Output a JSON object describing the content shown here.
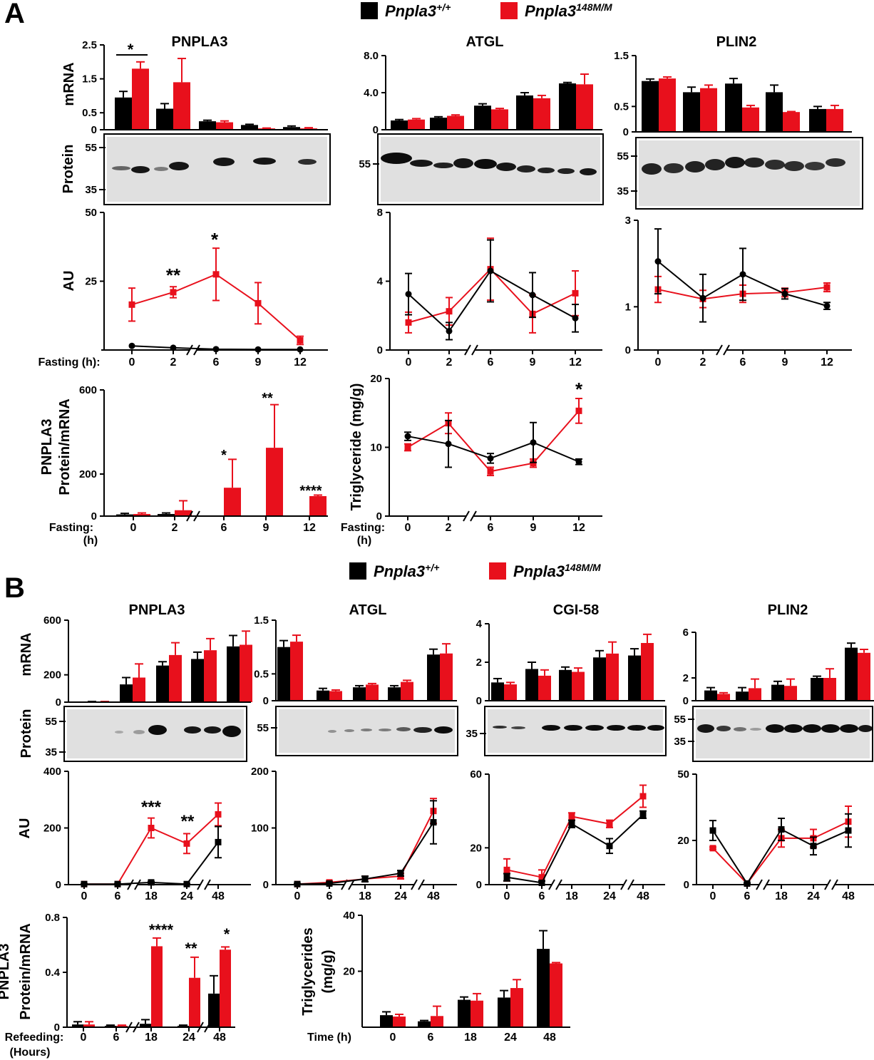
{
  "panel_letters": [
    "A",
    "B"
  ],
  "legends": {
    "A": {
      "wt": "Pnpla3",
      "wt_sup": "+/+",
      "mut": "Pnpla3",
      "mut_sup": "148M/M"
    },
    "B": {
      "wt": "Pnpla3",
      "wt_sup": "+/+",
      "mut": "Pnpla3",
      "mut_sup": "148M/M"
    }
  },
  "colors": {
    "wt": "#000000",
    "mut": "#e8101c"
  },
  "labels": {
    "A": {
      "mrna": "mRNA",
      "protein": "Protein",
      "au": "AU",
      "fasting_axis": "Fasting (h):",
      "ratio_ylabel_1": "PNPLA3",
      "ratio_ylabel_2": "Protein/mRNA",
      "fasting_short": "Fasting:",
      "h": "(h)",
      "tg_ylabel": "Triglyceride (mg/g)"
    },
    "B": {
      "mrna": "mRNA",
      "protein": "Protein",
      "au": "AU",
      "ratio_ylabel_1": "PNPLA3",
      "ratio_ylabel_2": "Protein/mRNA",
      "refeeding": "Refeeding:",
      "hours": "(Hours)",
      "tg_ylabel_1": "Triglycerides",
      "tg_ylabel_2": "(mg/g)",
      "time": "Time (h)"
    }
  },
  "chart_data": [
    {
      "id": "A-mrna-pnpla3",
      "type": "bar",
      "title": "PNPLA3",
      "ylabel": "mRNA",
      "categories": [
        "0",
        "2",
        "6",
        "9",
        "12"
      ],
      "ylim": [
        0,
        2.5
      ],
      "yticks": [
        "0",
        "0.5",
        "1.5",
        "2.5"
      ],
      "series": [
        {
          "values": [
            0.95,
            0.62,
            0.25,
            0.14,
            0.08
          ],
          "errors": [
            0.18,
            0.15,
            0.03,
            0.02,
            0.03
          ]
        },
        {
          "values": [
            1.8,
            1.4,
            0.22,
            0.04,
            0.04
          ],
          "errors": [
            0.2,
            0.7,
            0.04,
            0.01,
            0.02
          ]
        }
      ],
      "annotations": [
        "*"
      ]
    },
    {
      "id": "A-mrna-atgl",
      "type": "bar",
      "title": "ATGL",
      "categories": [
        "0",
        "2",
        "6",
        "9",
        "12"
      ],
      "ylim": [
        0,
        8.0
      ],
      "yticks": [
        "0",
        "4.0",
        "8.0"
      ],
      "series": [
        {
          "values": [
            1.0,
            1.3,
            2.6,
            3.7,
            5.0
          ],
          "errors": [
            0.1,
            0.1,
            0.2,
            0.3,
            0.1
          ]
        },
        {
          "values": [
            1.1,
            1.5,
            2.2,
            3.4,
            4.9
          ],
          "errors": [
            0.1,
            0.1,
            0.1,
            0.3,
            1.1
          ]
        }
      ]
    },
    {
      "id": "A-mrna-plin2",
      "type": "bar",
      "title": "PLIN2",
      "categories": [
        "0",
        "2",
        "6",
        "9",
        "12"
      ],
      "ylim": [
        0,
        1.5
      ],
      "yticks": [
        "0",
        "0.5",
        "1.5"
      ],
      "series": [
        {
          "values": [
            1.0,
            0.78,
            0.95,
            0.78,
            0.45
          ],
          "errors": [
            0.04,
            0.1,
            0.1,
            0.14,
            0.05
          ]
        },
        {
          "values": [
            1.05,
            0.86,
            0.48,
            0.39,
            0.45
          ],
          "errors": [
            0.03,
            0.06,
            0.04,
            0.01,
            0.07
          ]
        }
      ]
    },
    {
      "id": "A-au-pnpla3",
      "type": "line",
      "ylabel": "AU",
      "x": [
        "0",
        "2",
        "6",
        "9",
        "12"
      ],
      "ylim": [
        0,
        50
      ],
      "yticks": [
        "25",
        "50"
      ],
      "series": [
        {
          "values": [
            1.5,
            0.8,
            0.3,
            0.2,
            0.2
          ],
          "errors": [
            0,
            0,
            0,
            0,
            0
          ]
        },
        {
          "values": [
            16.5,
            21,
            27.5,
            17,
            3.5
          ],
          "errors": [
            6,
            2,
            9.5,
            7.5,
            1.5
          ]
        }
      ],
      "annotations": [
        "**",
        "*"
      ]
    },
    {
      "id": "A-au-atgl",
      "type": "line",
      "x": [
        "0",
        "2",
        "6",
        "9",
        "12"
      ],
      "ylim": [
        0,
        8
      ],
      "yticks": [
        "0",
        "4",
        "8"
      ],
      "series": [
        {
          "values": [
            3.25,
            1.1,
            4.6,
            3.2,
            1.85
          ],
          "errors": [
            1.2,
            0.5,
            1.8,
            1.3,
            0.8
          ]
        },
        {
          "values": [
            1.6,
            2.25,
            4.7,
            2.1,
            3.3
          ],
          "errors": [
            0.6,
            0.8,
            1.8,
            1.1,
            1.3
          ]
        }
      ]
    },
    {
      "id": "A-au-plin2",
      "type": "line",
      "x": [
        "0",
        "2",
        "6",
        "9",
        "12"
      ],
      "ylim": [
        0,
        3
      ],
      "yticks": [
        "0",
        "1",
        "3"
      ],
      "series": [
        {
          "values": [
            2.05,
            1.2,
            1.75,
            1.3,
            1.02
          ],
          "errors": [
            0.75,
            0.55,
            0.6,
            0.12,
            0.08
          ]
        },
        {
          "values": [
            1.4,
            1.18,
            1.3,
            1.33,
            1.45
          ],
          "errors": [
            0.3,
            0.2,
            0.2,
            0.1,
            0.1
          ]
        }
      ]
    },
    {
      "id": "A-ratio-pnpla3",
      "type": "bar",
      "x": [
        "0",
        "2",
        "6",
        "9",
        "12"
      ],
      "ylim": [
        0,
        600
      ],
      "yticks": [
        "0",
        "200",
        "600"
      ],
      "series": [
        {
          "values": [
            8,
            10,
            0,
            0,
            0
          ],
          "errors": [
            5,
            5,
            0,
            0,
            0
          ]
        },
        {
          "values": [
            10,
            28,
            135,
            325,
            95
          ],
          "errors": [
            5,
            45,
            135,
            205,
            5
          ]
        }
      ],
      "annotations": [
        "*",
        "**",
        "****"
      ]
    },
    {
      "id": "A-tg",
      "type": "line",
      "x": [
        "0",
        "2",
        "6",
        "9",
        "12"
      ],
      "ylim": [
        0,
        20
      ],
      "yticks": [
        "0",
        "10",
        "20"
      ],
      "series": [
        {
          "values": [
            11.6,
            10.5,
            8.4,
            10.7,
            7.9
          ],
          "errors": [
            0.6,
            3.4,
            0.7,
            2.9,
            0.4
          ]
        },
        {
          "values": [
            10,
            13.5,
            6.5,
            7.7,
            15.3
          ],
          "errors": [
            0.5,
            1.5,
            0.6,
            0.6,
            1.8
          ]
        }
      ],
      "annotations": [
        "*"
      ]
    },
    {
      "id": "B-mrna-pnpla3",
      "type": "bar",
      "title": "PNPLA3",
      "ylabel": "mRNA",
      "categories": [
        "0",
        "6",
        "18",
        "24",
        "48"
      ],
      "ylim": [
        0,
        600
      ],
      "yticks": [
        "0",
        "200",
        "600"
      ],
      "series": [
        {
          "values": [
            3,
            130,
            268,
            316,
            408
          ],
          "errors": [
            2,
            50,
            28,
            50,
            80
          ]
        },
        {
          "values": [
            3,
            180,
            345,
            380,
            420
          ],
          "errors": [
            2,
            100,
            90,
            85,
            100
          ]
        }
      ]
    },
    {
      "id": "B-mrna-atgl",
      "type": "bar",
      "title": "ATGL",
      "categories": [
        "0",
        "6",
        "18",
        "24",
        "48"
      ],
      "ylim": [
        0,
        1.5
      ],
      "yticks": [
        "0",
        "0.5",
        "1.5"
      ],
      "series": [
        {
          "values": [
            1.0,
            0.19,
            0.25,
            0.25,
            0.86
          ],
          "errors": [
            0.12,
            0.04,
            0.03,
            0.03,
            0.1
          ]
        },
        {
          "values": [
            1.1,
            0.18,
            0.3,
            0.35,
            0.88
          ],
          "errors": [
            0.12,
            0.02,
            0.02,
            0.03,
            0.18
          ]
        }
      ]
    },
    {
      "id": "B-mrna-cgi58",
      "type": "bar",
      "title": "CGI-58",
      "categories": [
        "0",
        "6",
        "18",
        "24",
        "48"
      ],
      "ylim": [
        0,
        4
      ],
      "yticks": [
        "0",
        "2",
        "4"
      ],
      "series": [
        {
          "values": [
            0.95,
            1.65,
            1.6,
            2.25,
            2.35
          ],
          "errors": [
            0.2,
            0.35,
            0.15,
            0.35,
            0.35
          ]
        },
        {
          "values": [
            0.85,
            1.3,
            1.5,
            2.45,
            3.0
          ],
          "errors": [
            0.1,
            0.3,
            0.2,
            0.6,
            0.45
          ]
        }
      ]
    },
    {
      "id": "B-mrna-plin2",
      "type": "bar",
      "title": "PLIN2",
      "categories": [
        "0",
        "6",
        "18",
        "24",
        "48"
      ],
      "ylim": [
        0,
        6
      ],
      "yticks": [
        "0",
        "2",
        "6"
      ],
      "series": [
        {
          "values": [
            0.9,
            0.8,
            1.4,
            2.0,
            4.65
          ],
          "errors": [
            0.25,
            0.35,
            0.3,
            0.15,
            0.4
          ]
        },
        {
          "values": [
            0.6,
            1.1,
            1.3,
            2.0,
            4.2
          ],
          "errors": [
            0.1,
            0.8,
            0.6,
            0.8,
            0.3
          ]
        }
      ]
    },
    {
      "id": "B-au-pnpla3",
      "type": "line",
      "ylabel": "AU",
      "x": [
        "0",
        "6",
        "18",
        "24",
        "48"
      ],
      "ylim": [
        0,
        400
      ],
      "yticks": [
        "0",
        "200",
        "400"
      ],
      "series": [
        {
          "values": [
            2,
            2,
            8,
            2,
            150
          ],
          "errors": [
            1,
            1,
            3,
            1,
            55
          ]
        },
        {
          "values": [
            2,
            2,
            200,
            145,
            248
          ],
          "errors": [
            1,
            1,
            35,
            35,
            40
          ]
        }
      ],
      "annotations": [
        "***",
        "**"
      ]
    },
    {
      "id": "B-au-atgl",
      "type": "line",
      "x": [
        "0",
        "6",
        "18",
        "24",
        "48"
      ],
      "ylim": [
        0,
        200
      ],
      "yticks": [
        "0",
        "100",
        "200"
      ],
      "series": [
        {
          "values": [
            1,
            2,
            10,
            20,
            110
          ],
          "errors": [
            1,
            2,
            5,
            5,
            38
          ]
        },
        {
          "values": [
            1,
            4,
            10,
            15,
            130
          ],
          "errors": [
            1,
            2,
            5,
            5,
            22
          ]
        }
      ]
    },
    {
      "id": "B-au-cgi58",
      "type": "line",
      "x": [
        "0",
        "6",
        "18",
        "24",
        "48"
      ],
      "ylim": [
        0,
        60
      ],
      "yticks": [
        "0",
        "20",
        "60"
      ],
      "series": [
        {
          "values": [
            4,
            1,
            33,
            21,
            38
          ],
          "errors": [
            2,
            1,
            2,
            4,
            2
          ]
        },
        {
          "values": [
            8,
            4,
            37,
            33,
            48
          ],
          "errors": [
            6,
            4,
            2,
            2,
            6
          ]
        }
      ]
    },
    {
      "id": "B-au-plin2",
      "type": "line",
      "x": [
        "0",
        "6",
        "18",
        "24",
        "48"
      ],
      "ylim": [
        0,
        50
      ],
      "yticks": [
        "0",
        "20",
        "50"
      ],
      "series": [
        {
          "values": [
            24.5,
            0.5,
            25,
            17.5,
            24.5
          ],
          "errors": [
            4.5,
            0.3,
            5,
            4,
            7.5
          ]
        },
        {
          "values": [
            16.5,
            0.5,
            21,
            21,
            28.5
          ],
          "errors": [
            0.5,
            0.3,
            4,
            4,
            7
          ]
        }
      ]
    },
    {
      "id": "B-ratio-pnpla3",
      "type": "bar",
      "x": [
        "0",
        "6",
        "18",
        "24",
        "48"
      ],
      "ylim": [
        0,
        0.8
      ],
      "yticks": [
        "0",
        "0.4",
        "0.8"
      ],
      "series": [
        {
          "values": [
            0.02,
            0.01,
            0.025,
            0.01,
            0.245
          ],
          "errors": [
            0.02,
            0.005,
            0.03,
            0.005,
            0.13
          ]
        },
        {
          "values": [
            0.02,
            0.01,
            0.59,
            0.36,
            0.565
          ],
          "errors": [
            0.02,
            0.005,
            0.06,
            0.15,
            0.02
          ]
        }
      ],
      "annotations": [
        "****",
        "**",
        "*"
      ]
    },
    {
      "id": "B-tg",
      "type": "bar",
      "x": [
        "0",
        "6",
        "18",
        "24",
        "48"
      ],
      "xlabel": "Time (h)",
      "ylim": [
        0,
        40
      ],
      "yticks": [
        "20",
        "40"
      ],
      "series": [
        {
          "values": [
            4.3,
            2.1,
            9.8,
            10.6,
            28
          ],
          "errors": [
            1.2,
            0.3,
            1,
            2.5,
            6.5
          ]
        },
        {
          "values": [
            3.8,
            4,
            9.5,
            14,
            22.8
          ],
          "errors": [
            0.8,
            3.5,
            2.5,
            3,
            0.3
          ]
        }
      ]
    }
  ],
  "blots": [
    {
      "id": "A-blot-pnpla3",
      "ylabel": "Protein",
      "markers": [
        "55",
        "35"
      ]
    },
    {
      "id": "A-blot-atgl",
      "markers": [
        "55"
      ]
    },
    {
      "id": "A-blot-plin2",
      "markers": [
        "55",
        "35"
      ]
    },
    {
      "id": "B-blot-pnpla3",
      "ylabel": "Protein",
      "markers": [
        "55",
        "35"
      ]
    },
    {
      "id": "B-blot-atgl",
      "markers": [
        "55"
      ]
    },
    {
      "id": "B-blot-cgi58",
      "markers": [
        "35"
      ]
    },
    {
      "id": "B-blot-plin2",
      "markers": [
        "55",
        "35"
      ]
    }
  ]
}
